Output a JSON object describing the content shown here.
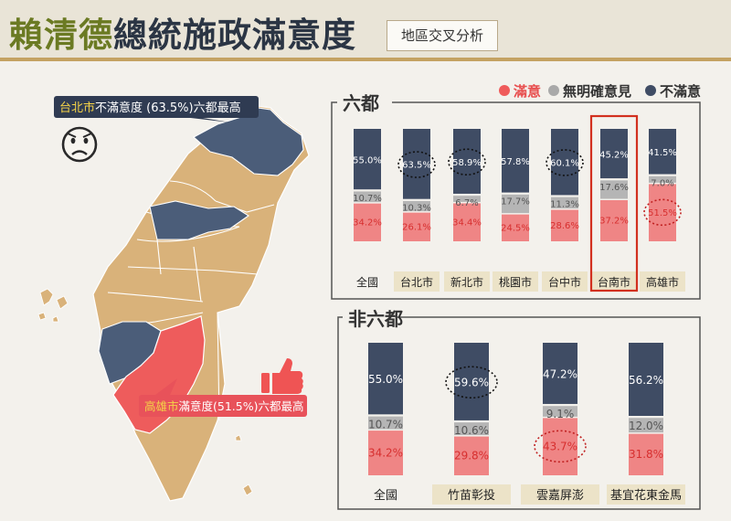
{
  "header": {
    "title_highlight": "賴清德",
    "title_rest": "總統施政滿意度",
    "subtitle": "地區交叉分析"
  },
  "legend": {
    "items": [
      {
        "label": "滿意",
        "color": "#ef5b5b"
      },
      {
        "label": "無明確意見",
        "color": "#a9a9a9"
      },
      {
        "label": "不滿意",
        "color": "#3f4c64"
      }
    ]
  },
  "map": {
    "callout_top": {
      "city": "台北市",
      "text": "不滿意度 (63.5%)六都最高"
    },
    "callout_bottom": {
      "city": "高雄市",
      "text": "滿意度(51.5%)六都最高"
    },
    "colors": {
      "neutral": "#d9b27a",
      "dissatisfied": "#4b5d79",
      "satisfied": "#ee5c5c"
    },
    "icons": [
      "frown-face",
      "thumbs-up"
    ]
  },
  "chart_data": [
    {
      "type": "bar",
      "stacked": true,
      "panel_title": "六都",
      "categories": [
        "全國",
        "台北市",
        "新北市",
        "桃園市",
        "台中市",
        "台南市",
        "高雄市"
      ],
      "series": [
        {
          "name": "滿意",
          "color": "#ef8585",
          "values": [
            34.2,
            26.1,
            34.4,
            24.5,
            28.6,
            37.2,
            51.5
          ]
        },
        {
          "name": "無明確意見",
          "color": "#b5b5b5",
          "values": [
            10.7,
            10.3,
            6.7,
            17.7,
            11.3,
            17.6,
            7.0
          ]
        },
        {
          "name": "不滿意",
          "color": "#3f4c64",
          "values": [
            55.0,
            63.5,
            58.9,
            57.8,
            60.1,
            45.2,
            41.5
          ]
        }
      ],
      "highlights": {
        "circled": [
          "63.5%",
          "58.9%",
          "60.1%",
          "51.5%"
        ],
        "boxed_category": "台南市"
      },
      "ylim": [
        0,
        100
      ]
    },
    {
      "type": "bar",
      "stacked": true,
      "panel_title": "非六都",
      "categories": [
        "全國",
        "竹苗彰投",
        "雲嘉屏澎",
        "基宜花東金馬"
      ],
      "series": [
        {
          "name": "滿意",
          "color": "#ef8585",
          "values": [
            34.2,
            29.8,
            43.7,
            31.8
          ]
        },
        {
          "name": "無明確意見",
          "color": "#b5b5b5",
          "values": [
            10.7,
            10.6,
            9.1,
            12.0
          ]
        },
        {
          "name": "不滿意",
          "color": "#3f4c64",
          "values": [
            55.0,
            59.6,
            47.2,
            56.2
          ]
        }
      ],
      "highlights": {
        "circled": [
          "59.6%",
          "43.7%"
        ]
      },
      "ylim": [
        0,
        100
      ]
    }
  ]
}
